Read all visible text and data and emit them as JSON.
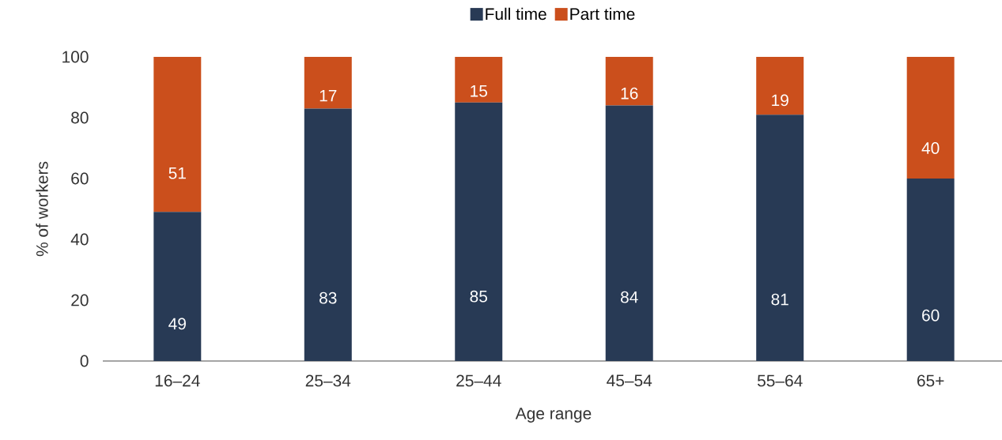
{
  "chart_data": {
    "type": "bar",
    "stacked": true,
    "xlabel": "Age range",
    "ylabel": "% of workers",
    "categories": [
      "16–24",
      "25–34",
      "25–44",
      "45–54",
      "55–64",
      "65+"
    ],
    "series": [
      {
        "name": "Full time",
        "color": "#283a55",
        "values": [
          49,
          83,
          85,
          84,
          81,
          60
        ]
      },
      {
        "name": "Part time",
        "color": "#cb4f1c",
        "values": [
          51,
          17,
          15,
          16,
          19,
          40
        ]
      }
    ],
    "ylim": [
      0,
      100
    ],
    "yticks": [
      0,
      20,
      40,
      60,
      80,
      100
    ],
    "data_labels": true,
    "legend": "top"
  }
}
